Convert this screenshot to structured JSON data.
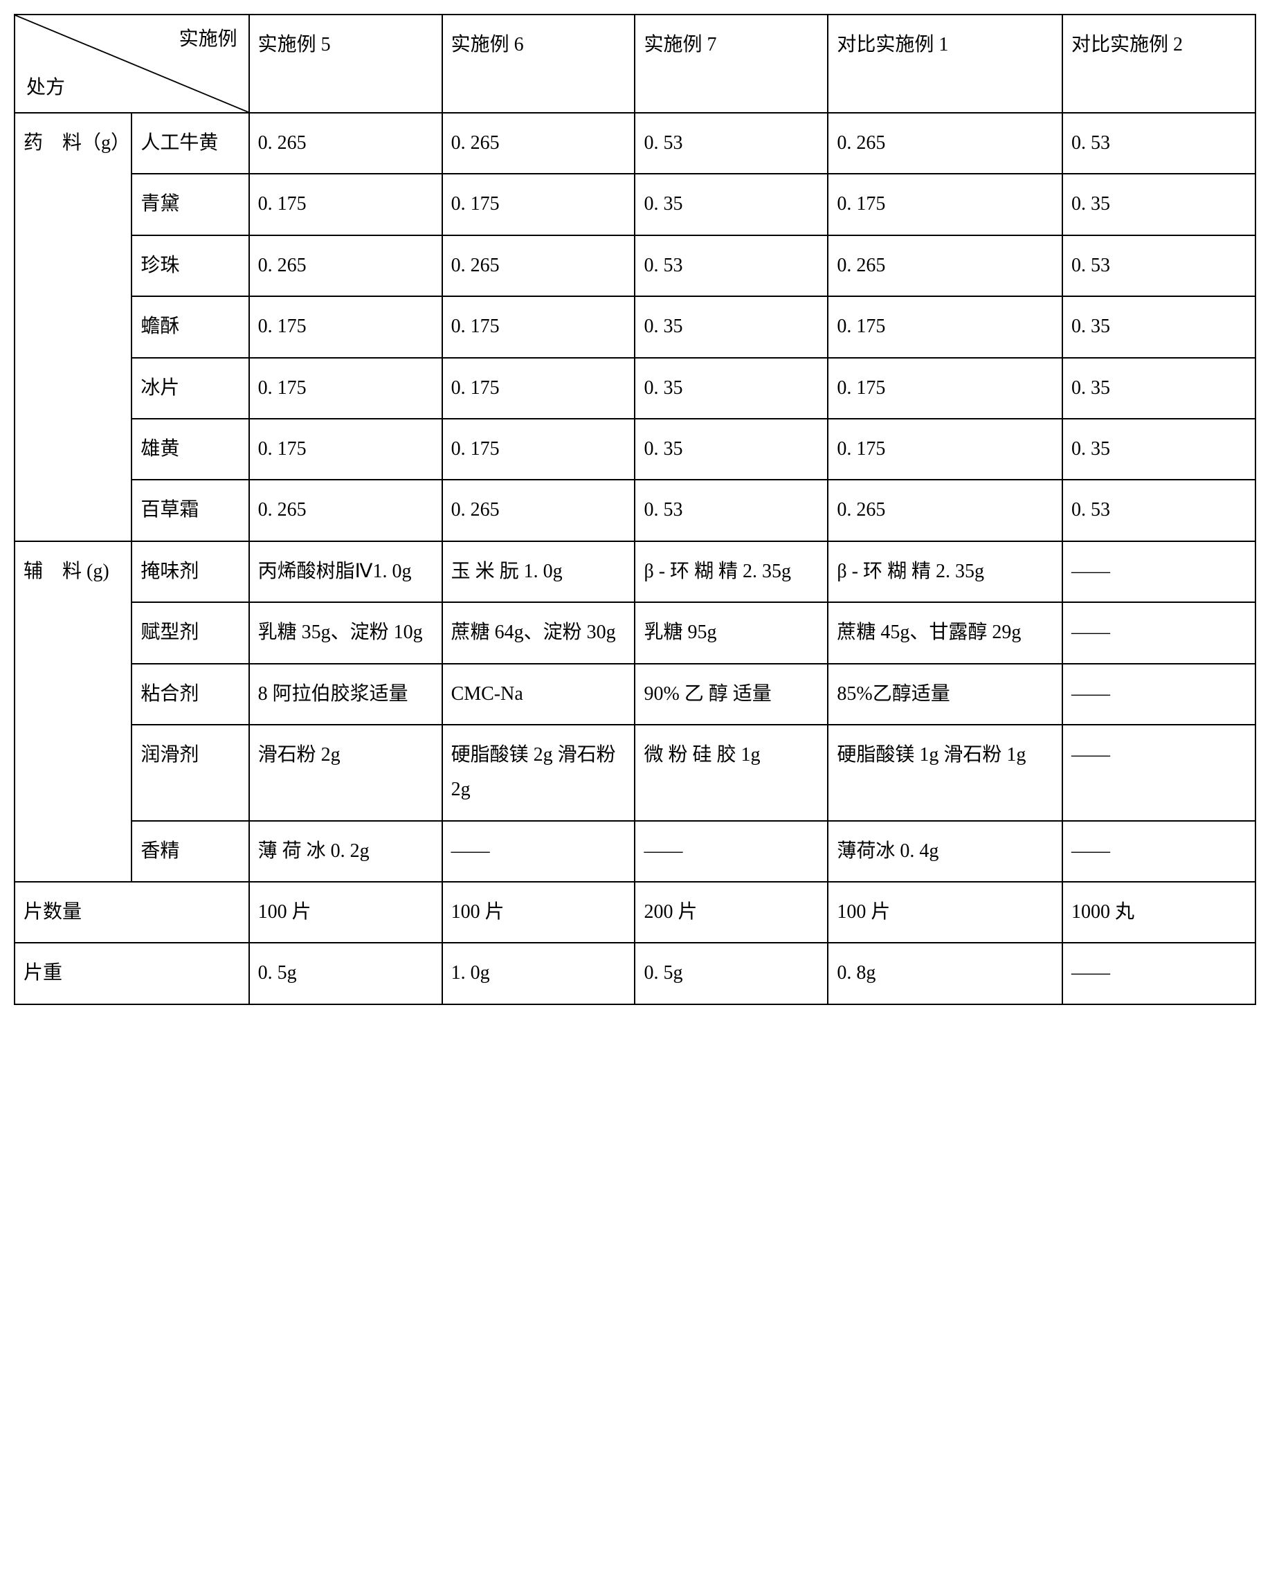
{
  "header": {
    "diag_top": "实施例",
    "diag_bot": "处方",
    "c1": "实施例 5",
    "c2": "实施例 6",
    "c3": "实施例 7",
    "c4": "对比实施例 1",
    "c5": "对比实施例 2"
  },
  "g1": {
    "label": "药　料（g）",
    "rows": [
      {
        "name": "人工牛黄",
        "v": [
          "0. 265",
          "0. 265",
          "0. 53",
          "0. 265",
          "0. 53"
        ]
      },
      {
        "name": "青黛",
        "v": [
          "0. 175",
          "0. 175",
          "0. 35",
          "0. 175",
          "0. 35"
        ]
      },
      {
        "name": "珍珠",
        "v": [
          "0. 265",
          "0. 265",
          "0. 53",
          "0. 265",
          "0. 53"
        ]
      },
      {
        "name": "蟾酥",
        "v": [
          "0. 175",
          "0. 175",
          "0. 35",
          "0. 175",
          "0. 35"
        ]
      },
      {
        "name": "冰片",
        "v": [
          "0. 175",
          "0. 175",
          "0. 35",
          "0. 175",
          "0. 35"
        ]
      },
      {
        "name": "雄黄",
        "v": [
          "0. 175",
          "0. 175",
          "0. 35",
          "0. 175",
          "0. 35"
        ]
      },
      {
        "name": "百草霜",
        "v": [
          "0. 265",
          "0. 265",
          "0. 53",
          "0. 265",
          "0. 53"
        ]
      }
    ]
  },
  "g2": {
    "label": "辅　料 (g)",
    "rows": [
      {
        "name": "掩味剂",
        "v": [
          "丙烯酸树脂Ⅳ1. 0g",
          "玉 米 朊 1. 0g",
          "β - 环 糊 精 2. 35g",
          "β - 环 糊 精 2. 35g",
          "——"
        ]
      },
      {
        "name": "赋型剂",
        "v": [
          "乳糖 35g、淀粉 10g",
          "蔗糖 64g、淀粉 30g",
          "乳糖 95g",
          "蔗糖 45g、甘露醇 29g",
          "——"
        ]
      },
      {
        "name": "粘合剂",
        "v": [
          "8 阿拉伯胶浆适量",
          "CMC-Na",
          "90% 乙 醇 适量",
          "85%乙醇适量",
          "——"
        ]
      },
      {
        "name": "润滑剂",
        "v": [
          "滑石粉 2g",
          "硬脂酸镁 2g 滑石粉 2g",
          "微 粉 硅 胶 1g",
          "硬脂酸镁 1g 滑石粉 1g",
          "——"
        ]
      },
      {
        "name": "香精",
        "v": [
          "薄 荷 冰 0. 2g",
          "——",
          "——",
          "薄荷冰 0. 4g",
          "——"
        ]
      }
    ]
  },
  "bottom": [
    {
      "label": "片数量",
      "v": [
        "100 片",
        "100 片",
        "200 片",
        "100 片",
        "1000 丸"
      ]
    },
    {
      "label": "片重",
      "v": [
        "0. 5g",
        "1. 0g",
        "0. 5g",
        "0. 8g",
        "——"
      ]
    }
  ]
}
